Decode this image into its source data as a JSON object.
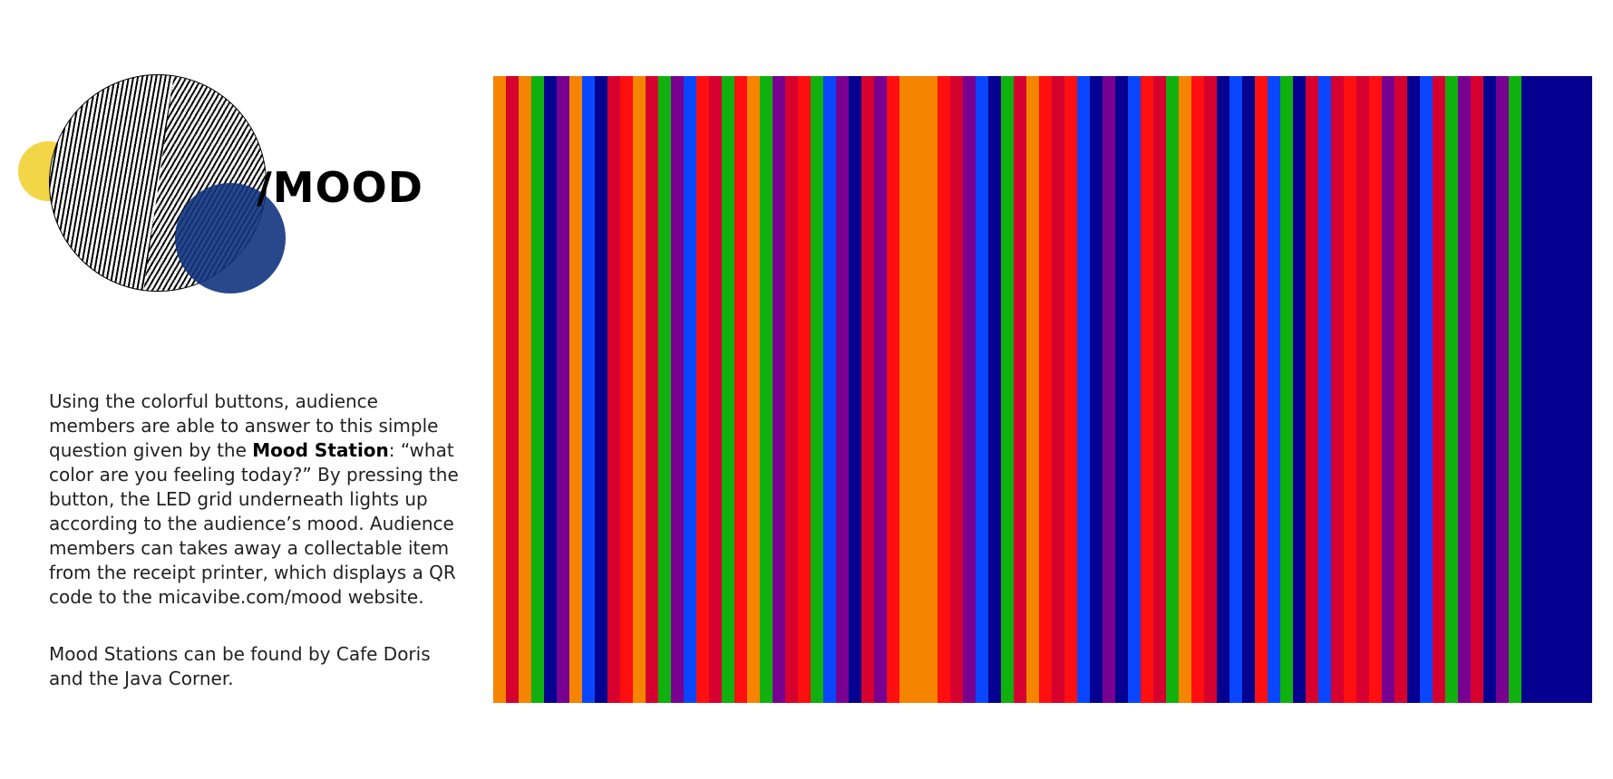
{
  "hero": {
    "title": "/MOOD"
  },
  "description": {
    "p1_before": "Using the colorful buttons, audience members are able to answer to this simple question given by the ",
    "p1_strong": "Mood Station",
    "p1_after": ": “what color are you feeling today?” By pressing the button, the LED grid underneath lights up according to the audience’s mood. Audience members can takes away a collectable item from the receipt printer, which displays a QR code to the micavibe.com/mood website.",
    "p2": "Mood Stations can be found by Cafe Doris and the Java Corner."
  },
  "colors": {
    "orange": "#f58400",
    "red": "#ff0f0f",
    "crimson": "#d6002e",
    "green": "#10b10f",
    "blue": "#0a46ff",
    "navy": "#05008f",
    "purple": "#780090",
    "yellow": "#f2d647",
    "globeBlue": "#11347e"
  },
  "mood_stripes": [
    "#f58400",
    "#d6002e",
    "#f58400",
    "#10b10f",
    "#05008f",
    "#780090",
    "#f58400",
    "#0a46ff",
    "#05008f",
    "#d6002e",
    "#ff0f0f",
    "#f58400",
    "#d6002e",
    "#10b10f",
    "#780090",
    "#0a46ff",
    "#ff0f0f",
    "#d6002e",
    "#10b10f",
    "#ff0f0f",
    "#f58400",
    "#10b10f",
    "#780090",
    "#d6002e",
    "#ff0f0f",
    "#10b10f",
    "#0a46ff",
    "#780090",
    "#05008f",
    "#d6002e",
    "#780090",
    "#ff0f0f",
    "#f58400",
    "#f58400",
    "#f58400",
    "#ff0f0f",
    "#d6002e",
    "#780090",
    "#0a46ff",
    "#05008f",
    "#10b10f",
    "#d6002e",
    "#f58400",
    "#ff0f0f",
    "#d6002e",
    "#ff0f0f",
    "#0a46ff",
    "#05008f",
    "#780090",
    "#05008f",
    "#0a46ff",
    "#ff0f0f",
    "#d6002e",
    "#10b10f",
    "#f58400",
    "#ff0f0f",
    "#d6002e",
    "#05008f",
    "#0a46ff",
    "#05008f",
    "#ff0f0f",
    "#0a46ff",
    "#10b10f",
    "#05008f",
    "#d6002e",
    "#0a46ff",
    "#d6002e",
    "#ff0f0f",
    "#d6002e",
    "#ff0f0f",
    "#780090",
    "#d6002e",
    "#05008f",
    "#0a46ff",
    "#d6002e",
    "#10b10f",
    "#780090",
    "#d6002e",
    "#05008f",
    "#780090",
    "#10b10f",
    "#05008f"
  ]
}
